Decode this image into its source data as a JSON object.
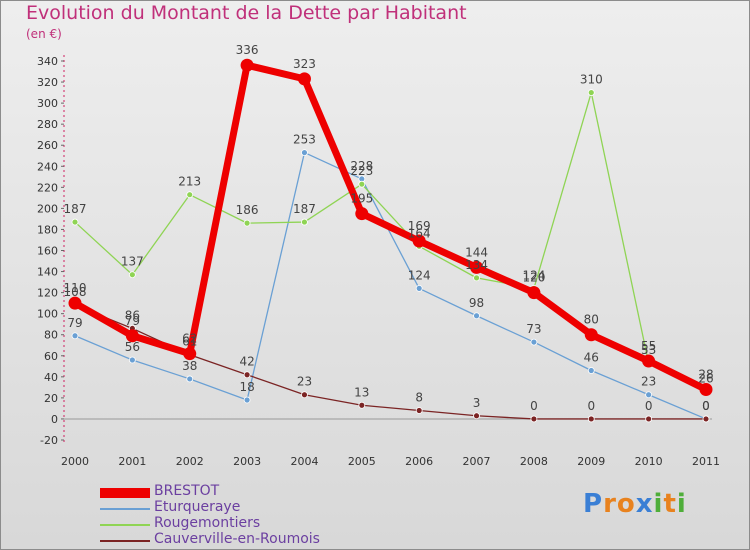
{
  "title": "Evolution du Montant de la Dette par Habitant",
  "unit_label": "(en €)",
  "logo": {
    "text": "Proxiti",
    "letters": [
      "P",
      "r",
      "o",
      "x",
      "i",
      "t",
      "i"
    ],
    "colors": [
      "#3a7fd5",
      "#e8821e",
      "#e8821e",
      "#3a7fd5",
      "#4fae3a",
      "#e8821e",
      "#4fae3a"
    ]
  },
  "chart_data": {
    "type": "line",
    "title": "Evolution du Montant de la Dette par Habitant",
    "ylabel": "(en €)",
    "xlabel": "",
    "x": [
      "2000",
      "2001",
      "2002",
      "2003",
      "2004",
      "2005",
      "2006",
      "2007",
      "2008",
      "2009",
      "2010",
      "2011"
    ],
    "ylim": [
      -20,
      340
    ],
    "yticks": [
      -20,
      0,
      20,
      40,
      60,
      80,
      100,
      120,
      140,
      160,
      180,
      200,
      220,
      240,
      260,
      280,
      300,
      320,
      340
    ],
    "grid": false,
    "legend_position": "bottom-left",
    "series": [
      {
        "name": "BRESTOT",
        "color": "#ee0000",
        "values": [
          110,
          79,
          62,
          336,
          323,
          195,
          169,
          144,
          120,
          80,
          55,
          28
        ]
      },
      {
        "name": "Eturqueraye",
        "color": "#6aa0d4",
        "values": [
          79,
          56,
          38,
          18,
          253,
          228,
          124,
          98,
          73,
          46,
          23,
          0
        ]
      },
      {
        "name": "Rougemontiers",
        "color": "#8fd454",
        "values": [
          187,
          137,
          213,
          186,
          187,
          223,
          164,
          134,
          124,
          310,
          53,
          26
        ]
      },
      {
        "name": "Cauverville-en-Roumois",
        "color": "#7b2424",
        "values": [
          108,
          86,
          61,
          42,
          23,
          13,
          8,
          3,
          0,
          0,
          0,
          0
        ]
      }
    ]
  }
}
